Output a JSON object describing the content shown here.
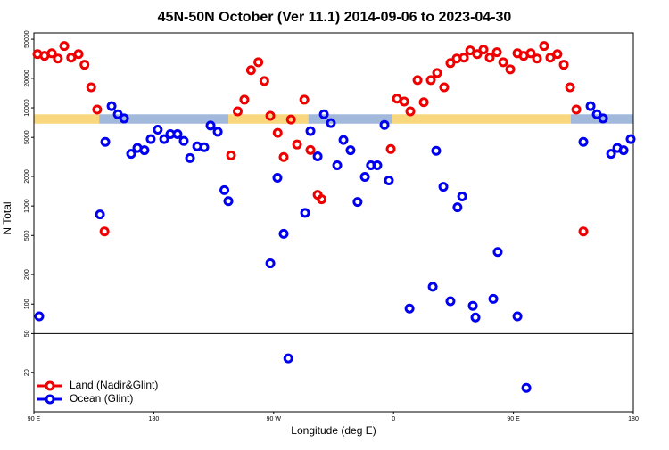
{
  "chart_data": {
    "type": "scatter",
    "title": "45N-50N October (Ver 11.1)   2014-09-06 to 2023-04-30",
    "x_label": "Longitude (deg E)",
    "y_label": "N Total",
    "xlim": [
      90,
      540
    ],
    "xticks": [
      {
        "value": 90,
        "label": "90 E"
      },
      180,
      {
        "value": 270,
        "label": "90 W"
      },
      {
        "value": 360,
        "label": "0"
      },
      {
        "value": 450,
        "label": "90 E"
      },
      {
        "value": 540,
        "label": "180"
      }
    ],
    "ylim": [
      8,
      58000
    ],
    "yticks": [
      20,
      50,
      100,
      200,
      500,
      1000,
      2000,
      5000,
      10000,
      20000,
      50000
    ],
    "log_y": true,
    "hline": 50,
    "legend": "bottom-left",
    "surface_band": {
      "ylim": [
        6900,
        8600
      ],
      "segments": [
        {
          "color": "#f9d77e",
          "x": [
            90,
            139
          ]
        },
        {
          "color": "#a3b9dc",
          "x": [
            139,
            236
          ]
        },
        {
          "color": "#f9d77e",
          "x": [
            236,
            296
          ]
        },
        {
          "color": "#a3b9dc",
          "x": [
            296,
            359
          ]
        },
        {
          "color": "#f9d77e",
          "x": [
            359,
            493
          ]
        },
        {
          "color": "#a3b9dc",
          "x": [
            493,
            540
          ]
        }
      ]
    },
    "series": [
      {
        "name": "Land (Nadir&Glint)",
        "color": "#ee0000",
        "x": [
          92.7,
          98,
          103.4,
          108,
          112.8,
          118,
          123.5,
          128,
          133,
          137.5,
          143,
          238,
          243,
          248,
          253,
          258.5,
          263,
          267.5,
          273,
          277.5,
          283,
          287.6,
          293,
          297.6,
          303,
          306,
          357.9,
          362.6,
          368,
          372.6,
          378,
          382.7,
          388,
          392.7,
          398,
          402.7,
          407.4,
          412.8,
          417.5,
          422.8,
          427.5,
          432.2,
          437.6,
          442.3,
          447.6,
          453,
          457.7,
          463,
          467.7,
          473,
          477.7,
          483,
          487.8,
          492.5,
          497.2,
          502.5
        ],
        "values": [
          35300,
          33900,
          36000,
          31800,
          42700,
          32500,
          35300,
          27500,
          16200,
          9600,
          550,
          3280,
          9200,
          12100,
          24200,
          29200,
          18800,
          8300,
          5560,
          3150,
          7600,
          4230,
          12100,
          3720,
          1300,
          1170,
          3800,
          12400,
          11600,
          9200,
          19200,
          11400,
          19200,
          22700,
          16200,
          28600,
          31800,
          32500,
          38500,
          35300,
          39300,
          32500,
          36900,
          29200,
          24700,
          36000,
          33900,
          36000,
          31800,
          42700,
          32500,
          35300,
          27500,
          16200,
          9600,
          550
        ]
      },
      {
        "name": "Ocean (Glint)",
        "color": "#0000ee",
        "x": [
          94,
          139.6,
          143.6,
          148.3,
          153,
          157.7,
          163,
          167.7,
          173,
          177.7,
          183,
          187.8,
          192.5,
          197.8,
          202.5,
          207.2,
          212.6,
          217.9,
          222.6,
          228,
          233,
          236,
          267.5,
          272.8,
          277.5,
          281,
          293.6,
          297.6,
          303,
          307.7,
          313,
          317.7,
          322.4,
          327.7,
          333,
          338.5,
          343,
          347.8,
          353.2,
          356.5,
          372,
          389.4,
          392,
          397.4,
          402.7,
          408,
          411.5,
          419.5,
          421.5,
          434.9,
          438.2,
          453,
          459.7,
          502.5,
          507.9,
          512.6,
          517.3,
          523.3,
          528,
          532.7,
          538
        ],
        "values": [
          75,
          820,
          4500,
          10400,
          8600,
          7800,
          3400,
          3900,
          3700,
          4800,
          6000,
          4800,
          5400,
          5400,
          4600,
          3080,
          4050,
          3970,
          6600,
          5700,
          1450,
          1120,
          260,
          1940,
          520,
          28,
          850,
          5800,
          3200,
          8600,
          7000,
          2600,
          4700,
          3700,
          1100,
          1980,
          2600,
          2600,
          6700,
          1820,
          90,
          150,
          3650,
          1570,
          107,
          970,
          1250,
          96,
          73,
          113,
          340,
          75,
          14,
          4500,
          10400,
          8600,
          7800,
          3400,
          3900,
          3700,
          4800
        ]
      }
    ]
  }
}
